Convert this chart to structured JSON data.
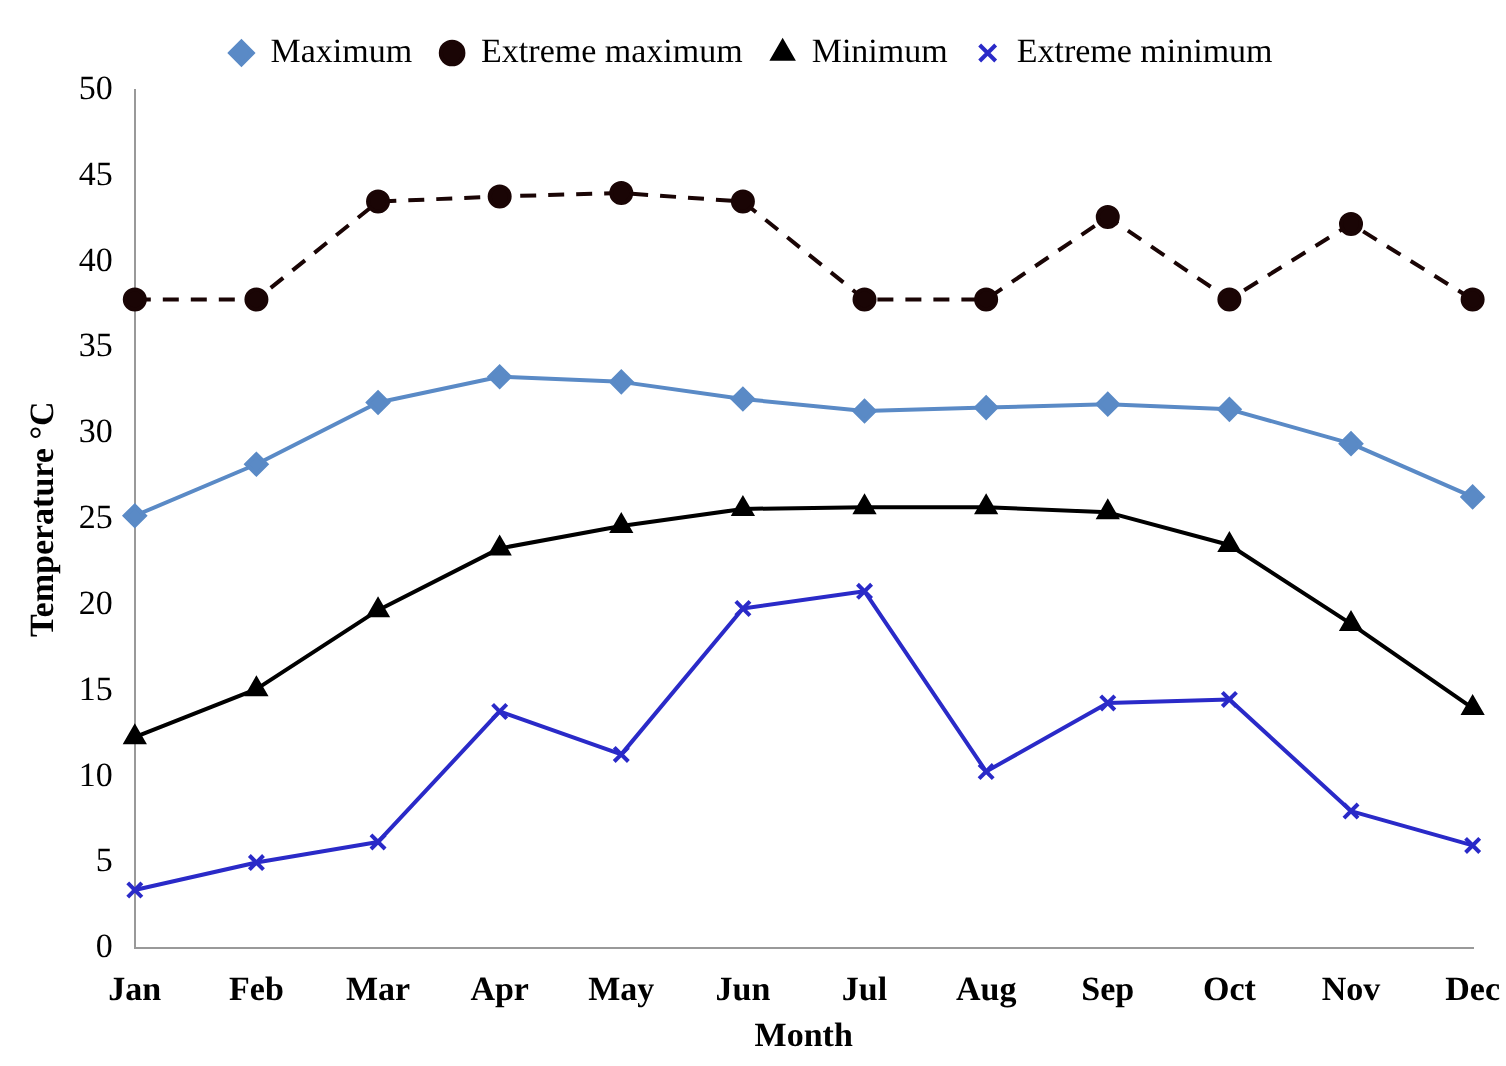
{
  "chart_data": {
    "type": "line",
    "xlabel": "Month",
    "ylabel": "Temperature °C",
    "categories": [
      "Jan",
      "Feb",
      "Mar",
      "Apr",
      "May",
      "Jun",
      "Jul",
      "Aug",
      "Sep",
      "Oct",
      "Nov",
      "Dec"
    ],
    "series": [
      {
        "name": "Maximum",
        "color": "#5a8ac6",
        "marker": "diamond",
        "line_style": "solid",
        "values": [
          25.2,
          28.2,
          31.8,
          33.3,
          33.0,
          32.0,
          31.3,
          31.5,
          31.7,
          31.4,
          29.4,
          26.3
        ]
      },
      {
        "name": "Extreme maximum",
        "color": "#1a0505",
        "marker": "circle",
        "line_style": "dashed",
        "values": [
          37.8,
          37.8,
          43.5,
          43.8,
          44.0,
          43.5,
          37.8,
          37.8,
          42.6,
          37.8,
          42.2,
          37.8
        ]
      },
      {
        "name": "Minimum",
        "color": "#000000",
        "marker": "triangle",
        "line_style": "solid",
        "values": [
          12.3,
          15.1,
          19.7,
          23.3,
          24.6,
          25.6,
          25.7,
          25.7,
          25.4,
          23.5,
          18.9,
          14.0
        ]
      },
      {
        "name": "Extreme minimum",
        "color": "#2a2ac8",
        "marker": "cross",
        "line_style": "solid",
        "values": [
          3.4,
          5.0,
          6.2,
          13.8,
          11.3,
          19.8,
          20.8,
          10.3,
          14.3,
          14.5,
          8.0,
          6.0
        ]
      }
    ],
    "ylim": [
      0,
      50
    ],
    "yticks": [
      0,
      5,
      10,
      15,
      20,
      25,
      30,
      35,
      40,
      45,
      50
    ],
    "grid": false,
    "legend": "top"
  }
}
